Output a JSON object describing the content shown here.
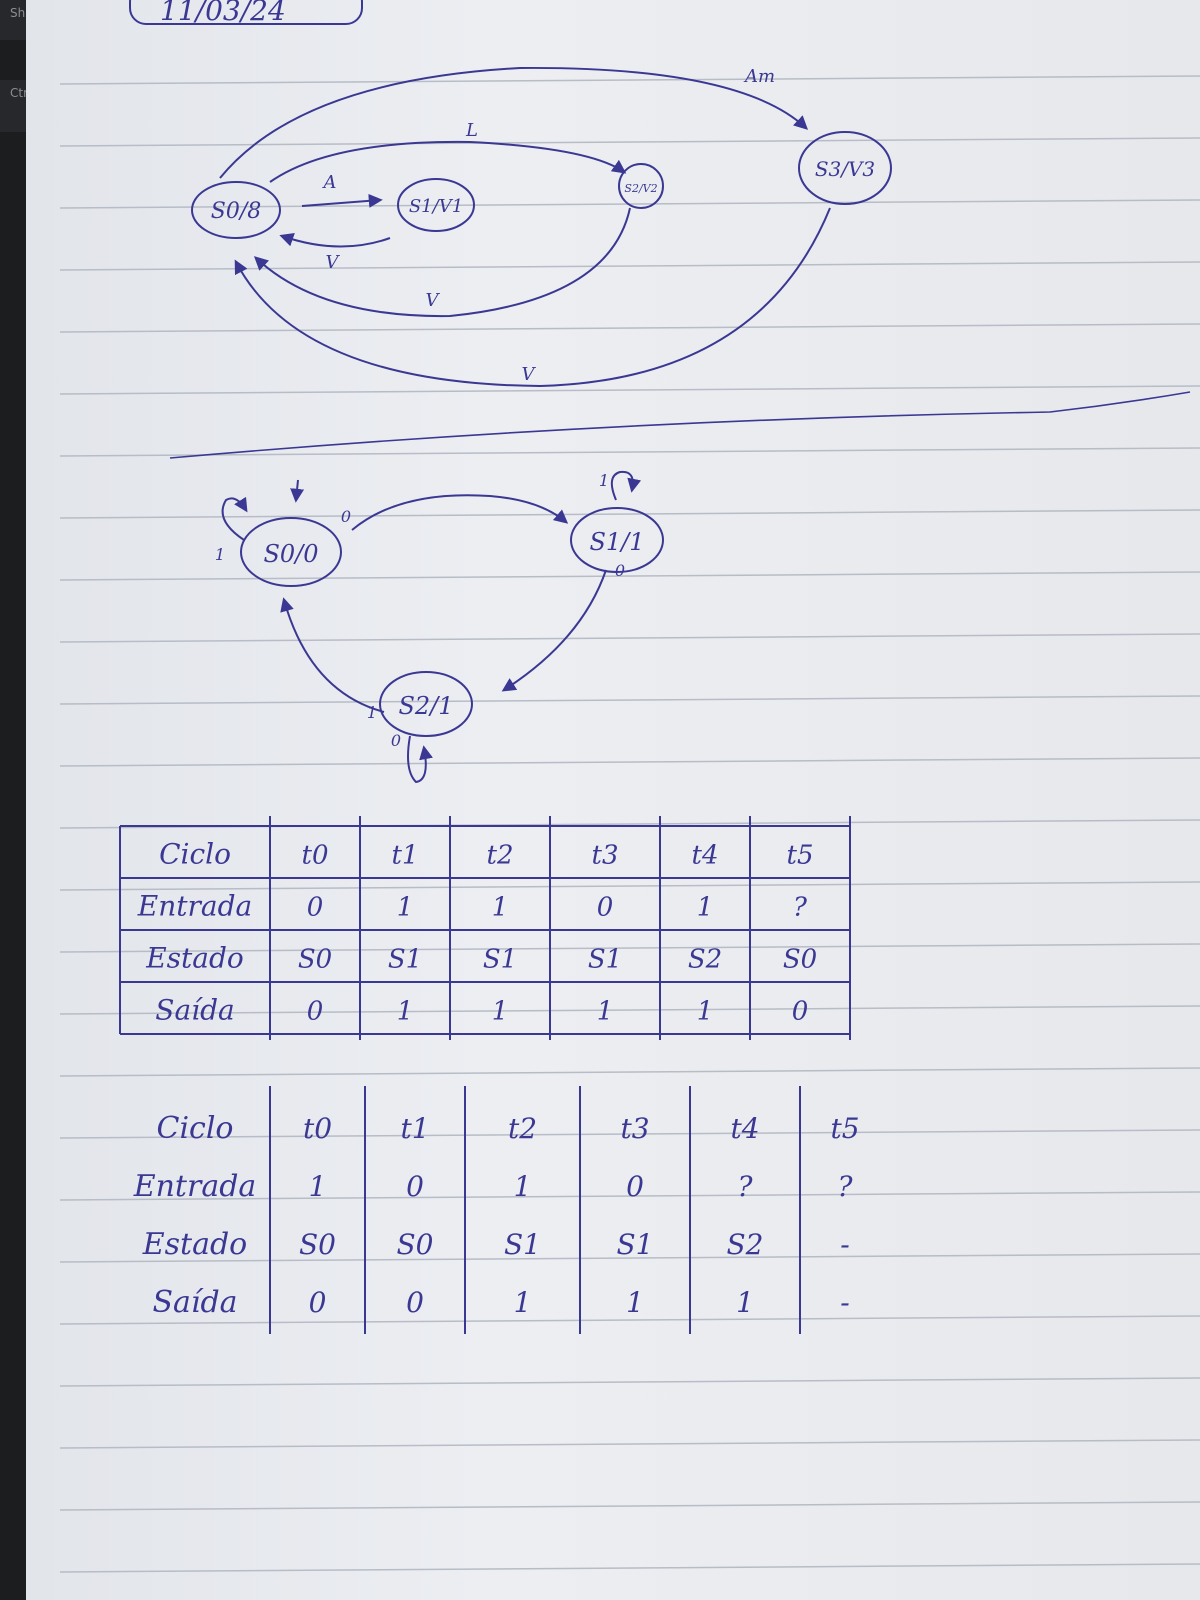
{
  "keyboard": {
    "key_shift": "Shif",
    "key_ctrl": "Ctrl"
  },
  "date": "11/03/24",
  "ink_color": "#3b3893",
  "diagram1": {
    "states": [
      {
        "id": "s0",
        "label": "S0/8"
      },
      {
        "id": "s1",
        "label": "S1/V1"
      },
      {
        "id": "s2",
        "label": "S2/V2"
      },
      {
        "id": "s3",
        "label": "S3/V3"
      }
    ],
    "transitions": [
      {
        "from": "s0",
        "to": "s1",
        "label": "A"
      },
      {
        "from": "s1",
        "to": "s0",
        "label": "V"
      },
      {
        "from": "s0",
        "to": "s2",
        "label": "L"
      },
      {
        "from": "s2",
        "to": "s0",
        "label": "V"
      },
      {
        "from": "s0",
        "to": "s3",
        "label": "Am"
      },
      {
        "from": "s3",
        "to": "s0",
        "label": "V"
      }
    ]
  },
  "diagram2": {
    "states": [
      {
        "id": "s0",
        "label": "S0/0"
      },
      {
        "id": "s1",
        "label": "S1/1"
      },
      {
        "id": "s2",
        "label": "S2/1"
      }
    ],
    "transitions": [
      {
        "from": "s0",
        "to": "s0",
        "label": "1"
      },
      {
        "from": "s0",
        "to": "s1",
        "label": "0"
      },
      {
        "from": "s1",
        "to": "s1",
        "label": "1"
      },
      {
        "from": "s1",
        "to": "s2",
        "label": "0"
      },
      {
        "from": "s2",
        "to": "s2",
        "label": "0"
      },
      {
        "from": "s2",
        "to": "s0",
        "label": "1"
      }
    ]
  },
  "table1": {
    "rows": [
      [
        "Ciclo",
        "t0",
        "t1",
        "t2",
        "t3",
        "t4",
        "t5"
      ],
      [
        "Entrada",
        "0",
        "1",
        "1",
        "0",
        "1",
        "?"
      ],
      [
        "Estado",
        "S0",
        "S1",
        "S1",
        "S1",
        "S2",
        "S0"
      ],
      [
        "Saída",
        "0",
        "1",
        "1",
        "1",
        "1",
        "0"
      ]
    ]
  },
  "table2": {
    "rows": [
      [
        "Ciclo",
        "t0",
        "t1",
        "t2",
        "t3",
        "t4",
        "t5"
      ],
      [
        "Entrada",
        "1",
        "0",
        "1",
        "0",
        "?",
        "?"
      ],
      [
        "Estado",
        "S0",
        "S0",
        "S1",
        "S1",
        "S2",
        "-"
      ],
      [
        "Saída",
        "0",
        "0",
        "1",
        "1",
        "1",
        "-"
      ]
    ]
  }
}
